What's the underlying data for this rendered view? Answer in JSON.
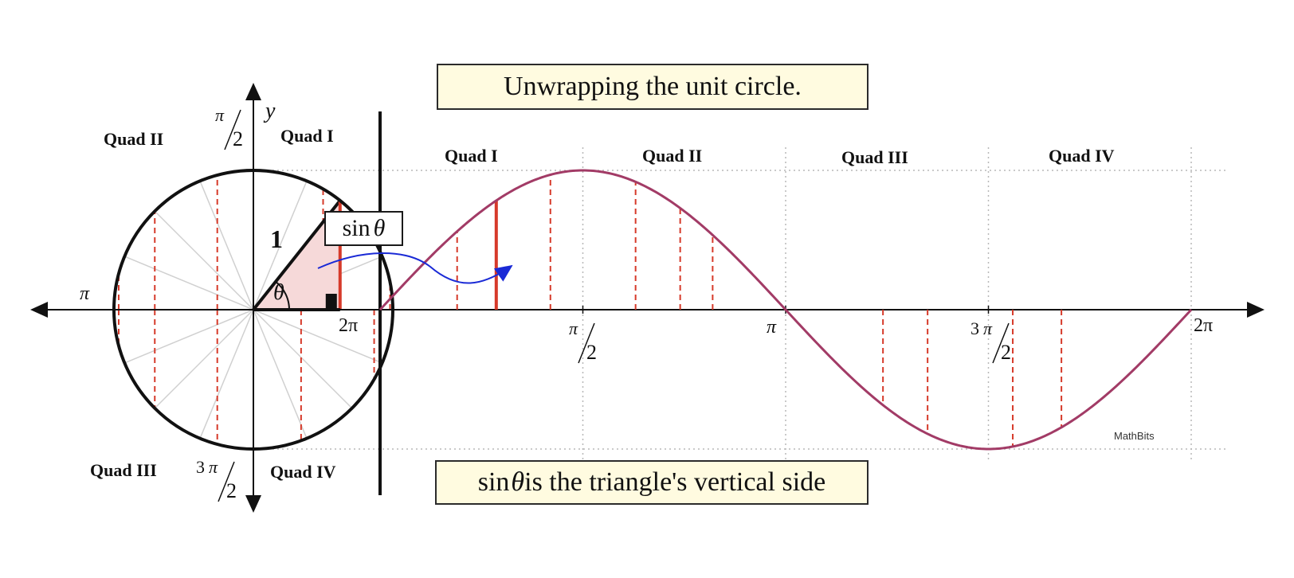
{
  "title": "Unwrapping the unit circle.",
  "caption": {
    "sin_text": "sin",
    "theta": "θ",
    "rest": " is the triangle's vertical side"
  },
  "watermark": "MathBits",
  "circle": {
    "quadrants": [
      "Quad I",
      "Quad II",
      "Quad III",
      "Quad IV"
    ],
    "y_axis_label": "y",
    "pi_label": "π",
    "two_pi_label": "2π",
    "half_pi": {
      "num": "π",
      "den": "2"
    },
    "three_half_pi": {
      "coef": "3",
      "num": "π",
      "den": "2"
    },
    "hypotenuse_label": "1",
    "angle_label": "θ",
    "sin_box": {
      "sin": "sin",
      "theta": "θ"
    }
  },
  "graph": {
    "quadrants": [
      "Quad I",
      "Quad II",
      "Quad III",
      "Quad IV"
    ],
    "tick_labels": {
      "half_pi": {
        "num": "π",
        "den": "2"
      },
      "pi": "π",
      "three_half_pi": {
        "coef": "3",
        "num": "π",
        "den": "2"
      },
      "two_pi": "2π"
    }
  },
  "colors": {
    "curve": "#a23b66",
    "sine_lines": "#d63a2a",
    "arrow": "#1a2ad6",
    "box_fill": "#fffbe0",
    "spokes": "#d0d0d0"
  }
}
